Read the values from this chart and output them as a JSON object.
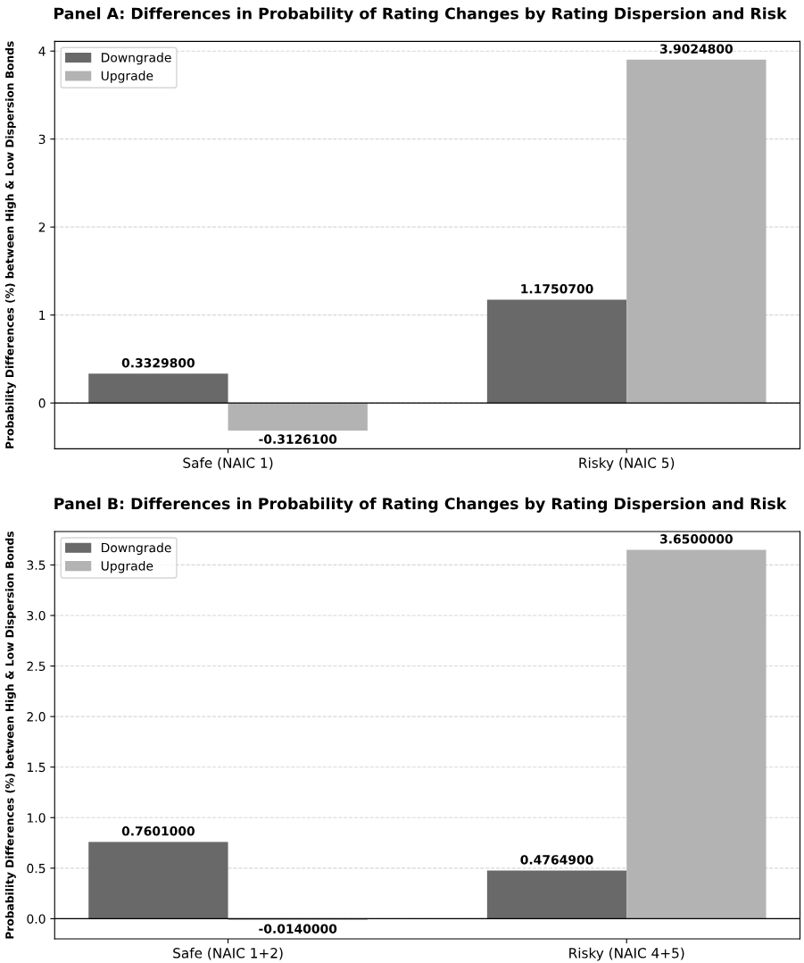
{
  "chart_data": [
    {
      "type": "bar",
      "title": "Panel A: Differences in Probability of Rating Changes by Rating Dispersion and Risk",
      "ylabel": "Probability Differences (%) between High & Low Dispersion Bonds",
      "categories": [
        "Safe (NAIC 1)",
        "Risky (NAIC 5)"
      ],
      "series": [
        {
          "name": "Downgrade",
          "color": "#696969",
          "values": [
            0.33298,
            1.17507
          ],
          "value_labels": [
            "0.3329800",
            "1.1750700"
          ]
        },
        {
          "name": "Upgrade",
          "color": "#b3b3b3",
          "values": [
            -0.31261,
            3.90248
          ],
          "value_labels": [
            "-0.3126100",
            "3.9024800"
          ]
        }
      ],
      "ylim": [
        -0.52,
        4.11
      ],
      "yticks": [
        0,
        1,
        2,
        3,
        4
      ],
      "grid": "y",
      "legend": "top left",
      "ref_lines": [
        {
          "axis": "y",
          "value": 0,
          "color": "#000000"
        }
      ]
    },
    {
      "type": "bar",
      "title": "Panel B: Differences in Probability of Rating Changes by Rating Dispersion and Risk",
      "ylabel": "Probability Differences (%) between High & Low Dispersion Bonds",
      "categories": [
        "Safe (NAIC 1+2)",
        "Risky (NAIC 4+5)"
      ],
      "series": [
        {
          "name": "Downgrade",
          "color": "#696969",
          "values": [
            0.7601,
            0.47649
          ],
          "value_labels": [
            "0.7601000",
            "0.4764900"
          ]
        },
        {
          "name": "Upgrade",
          "color": "#b3b3b3",
          "values": [
            -0.014,
            3.65
          ],
          "value_labels": [
            "-0.0140000",
            "3.6500000"
          ]
        }
      ],
      "ylim": [
        -0.2,
        3.83
      ],
      "yticks": [
        {
          "value": 0,
          "label": "0.0"
        },
        {
          "value": 0.5,
          "label": "0.5"
        },
        {
          "value": 1,
          "label": "1.0"
        },
        {
          "value": 1.5,
          "label": "1.5"
        },
        {
          "value": 2,
          "label": "2.0"
        },
        {
          "value": 2.5,
          "label": "2.5"
        },
        {
          "value": 3,
          "label": "3.0"
        },
        {
          "value": 3.5,
          "label": "3.5"
        }
      ],
      "grid": "y",
      "legend": "top left",
      "ref_lines": [
        {
          "axis": "y",
          "value": 0,
          "color": "#000000"
        }
      ]
    }
  ]
}
